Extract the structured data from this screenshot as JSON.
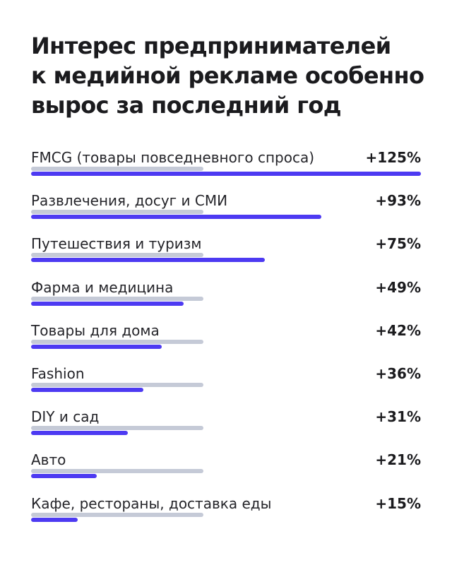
{
  "title_lines": [
    "Интерес предпринимателей",
    "к медийной рекламе особенно",
    "вырос за последний год"
  ],
  "colors": {
    "bar": "#4d3af2",
    "track": "#c5cad7",
    "text": "#1b1b1e"
  },
  "chart_data": {
    "type": "bar",
    "orientation": "horizontal",
    "title": "Интерес предпринимателей к медийной рекламе особенно вырос за последний год",
    "xlabel": "",
    "ylabel": "",
    "unit": "%",
    "categories": [
      "FMCG (товары повседневного спроса)",
      "Развлечения, досуг и СМИ",
      "Путешествия и туризм",
      "Фарма и медицина",
      "Товары для дома",
      "Fashion",
      "DIY и сад",
      "Авто",
      "Кафе, рестораны, доставка еды"
    ],
    "values": [
      125,
      93,
      75,
      49,
      42,
      36,
      31,
      21,
      15
    ],
    "value_labels": [
      "+125%",
      "+93%",
      "+75%",
      "+49%",
      "+42%",
      "+36%",
      "+31%",
      "+21%",
      "+15%"
    ],
    "xlim": [
      0,
      125
    ]
  }
}
